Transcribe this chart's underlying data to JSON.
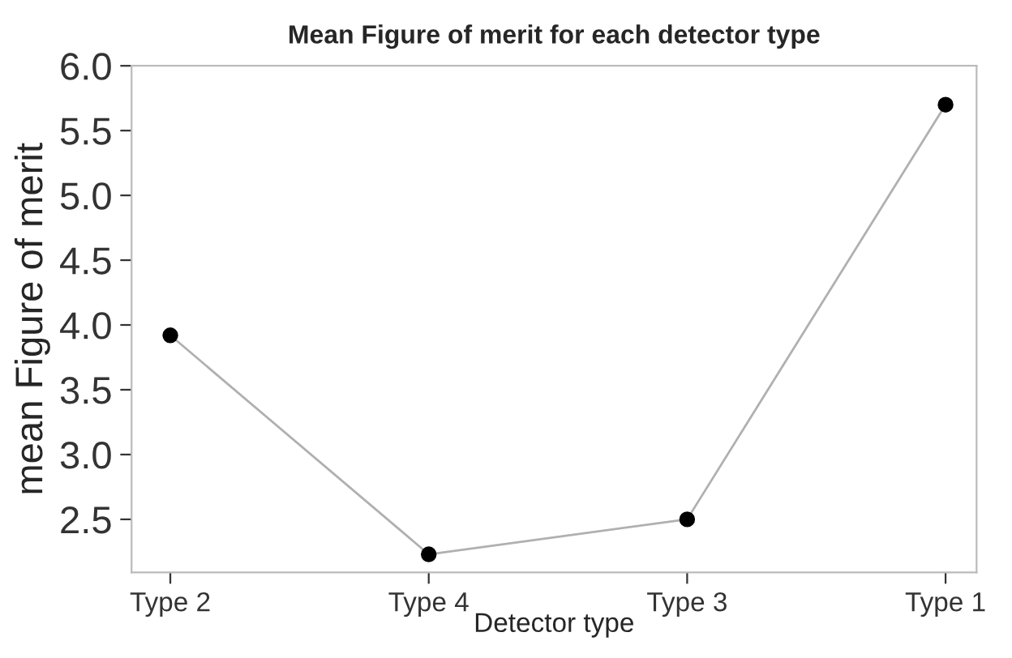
{
  "chart_data": {
    "type": "line",
    "title": "Mean Figure of merit for each detector type",
    "xlabel": "Detector type",
    "ylabel": "mean Figure of merit",
    "categories": [
      "Type 2",
      "Type 4",
      "Type 3",
      "Type 1"
    ],
    "series": [
      {
        "color": "#b0b0b0",
        "values": [
          3.92,
          2.23,
          2.5,
          5.7
        ]
      }
    ],
    "marker": "circle",
    "line_style": "solid",
    "ylim": [
      2.09,
      6.0
    ],
    "yticks": [
      2.5,
      {
        "value": 3,
        "label": "3.0"
      },
      3.5,
      {
        "value": 4,
        "label": "4.0"
      },
      4.5,
      {
        "value": 5,
        "label": "5.0"
      },
      5.5,
      {
        "value": 6,
        "label": "6.0"
      }
    ],
    "grid": false,
    "legend": false
  }
}
